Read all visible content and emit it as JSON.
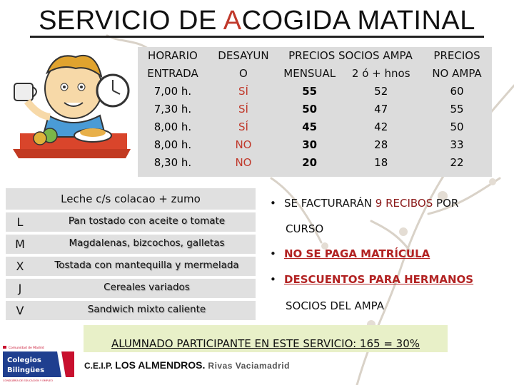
{
  "title": {
    "part1": "SERVICIO DE ",
    "accent": "A",
    "part2": "COGIDA MATINAL"
  },
  "schedule": {
    "headers": [
      [
        "HORARIO",
        "ENTRADA"
      ],
      [
        "DESAYUN",
        "O"
      ],
      [
        "PRECIOS SOCIOS AMPA",
        "MENSUAL"
      ],
      [
        "",
        "2 ó + hnos"
      ],
      [
        "PRECIOS",
        "NO AMPA"
      ]
    ],
    "rows": [
      [
        "7,00 h.",
        "SÍ",
        "55",
        "52",
        "60"
      ],
      [
        "7,30 h.",
        "SÍ",
        "50",
        "47",
        "55"
      ],
      [
        "8,00 h.",
        "SÍ",
        "45",
        "42",
        "50"
      ],
      [
        "8,00 h.",
        "NO",
        "30",
        "28",
        "33"
      ],
      [
        "8,30 h.",
        "NO",
        "20",
        "18",
        "22"
      ]
    ]
  },
  "menu": {
    "header": "Leche c/s colacao + zumo",
    "days": [
      {
        "day": "L",
        "food": "Pan tostado con aceite o tomate"
      },
      {
        "day": "M",
        "food": "Magdalenas, bizcochos, galletas"
      },
      {
        "day": "X",
        "food": "Tostada con mantequilla y mermelada"
      },
      {
        "day": "J",
        "food": "Cereales variados"
      },
      {
        "day": "V",
        "food": "Sandwich mixto caliente"
      }
    ]
  },
  "bullets": {
    "b1_pre": "SE FACTURARÁN ",
    "b1_red": "9 RECIBOS",
    "b1_post": " POR",
    "b1_line2": "CURSO",
    "b2": "NO SE PAGA MATRÍCULA",
    "b3": "DESCUENTOS PARA HERMANOS",
    "b3_line2": "SOCIOS DEL  AMPA",
    "bullet_glyph": "•"
  },
  "summary": "ALUMNADO PARTICIPANTE EN ESTE SERVICIO: 165 = 30%",
  "logo": {
    "line1": "Comunidad de Madrid",
    "line2": "Colegios",
    "line3": "Bilingües",
    "line4": "CONSEJERÍA DE EDUCACIÓN Y EMPLEO"
  },
  "school": {
    "prefix": "C.E.I.P. ",
    "name": "LOS ALMENDROS.",
    "city": "Rivas Vaciamadrid"
  },
  "colors": {
    "accent": "#c0392b",
    "table_bg": "#dcdcdc",
    "summary_bg": "#e8f0c8",
    "logo_red": "#c8102e",
    "logo_blue": "#1f3f8f"
  },
  "icons": {
    "illustration": "child-breakfast-illustration",
    "decor": "branch-decoration"
  }
}
